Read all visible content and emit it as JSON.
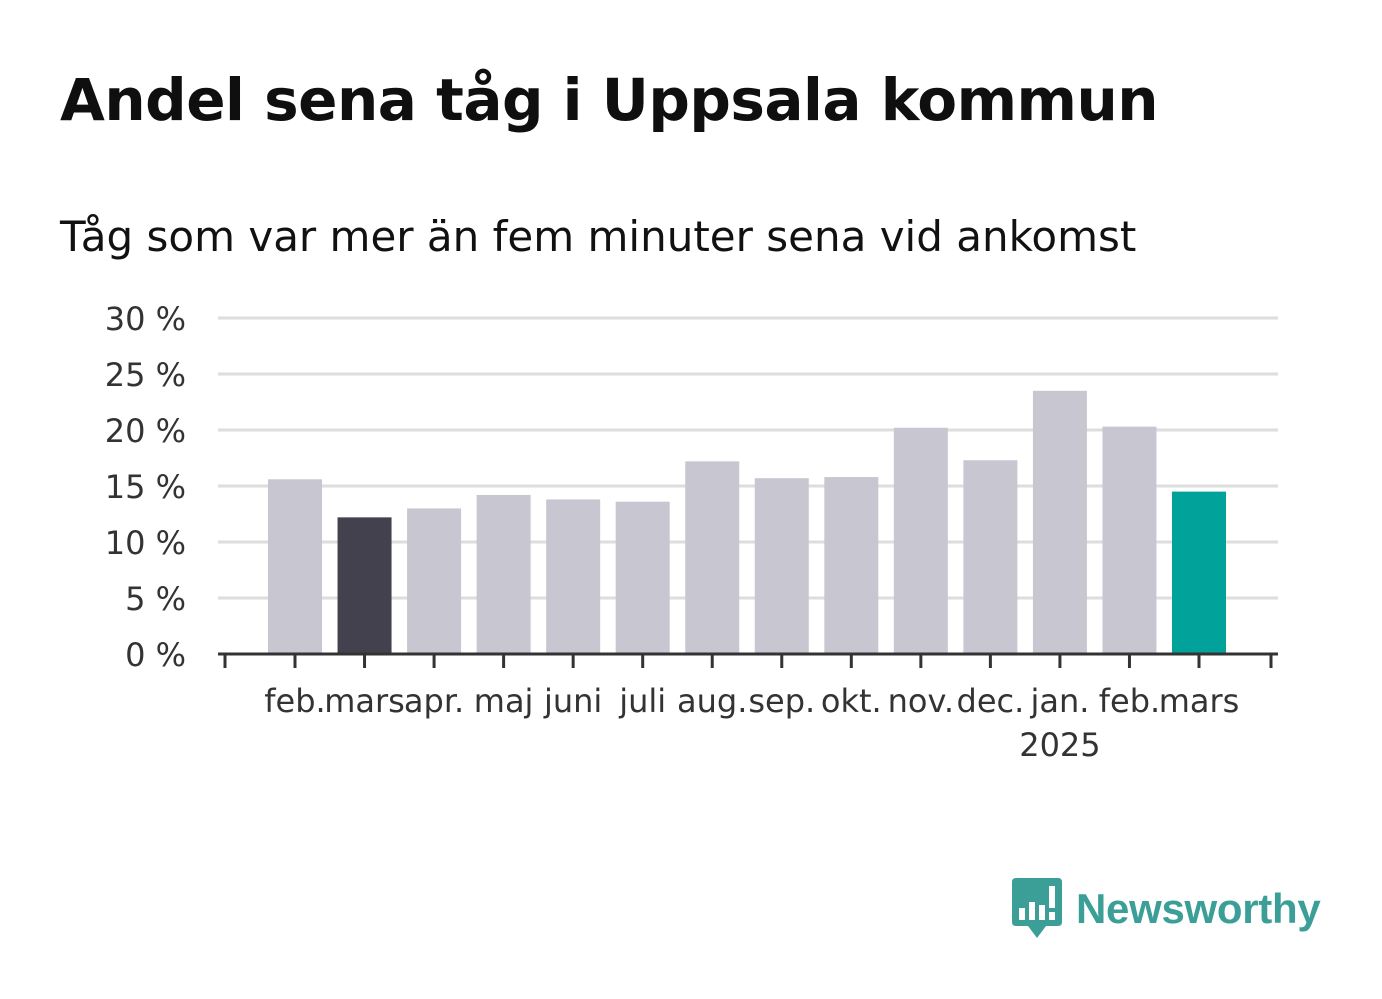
{
  "title": "Andel sena tåg i Uppsala kommun",
  "subtitle": "Tåg som var mer än fem minuter sena vid ankomst",
  "brand": {
    "name": "Newsworthy",
    "color": "#3b9f98",
    "icon": "newsworthy-speech-bar-icon"
  },
  "chart_data": {
    "type": "bar",
    "categories": [
      "feb.",
      "mars",
      "apr.",
      "maj",
      "juni",
      "juli",
      "aug.",
      "sep.",
      "okt.",
      "nov.",
      "dec.",
      "jan.",
      "feb.",
      "mars"
    ],
    "year_label": "2025",
    "year_label_under": "jan.",
    "values": [
      15.6,
      12.2,
      13.0,
      14.2,
      13.8,
      13.6,
      17.2,
      15.7,
      15.8,
      20.2,
      17.3,
      23.5,
      20.3,
      14.5
    ],
    "bar_colors": [
      "#c8c7d1",
      "#43414d",
      "#c8c7d1",
      "#c8c7d1",
      "#c8c7d1",
      "#c8c7d1",
      "#c8c7d1",
      "#c8c7d1",
      "#c8c7d1",
      "#c8c7d1",
      "#c8c7d1",
      "#c8c7d1",
      "#c8c7d1",
      "#00a29a"
    ],
    "y_ticks": [
      "0 %",
      "5 %",
      "10 %",
      "15 %",
      "20 %",
      "25 %",
      "30 %"
    ],
    "y_tick_values": [
      0,
      5,
      10,
      15,
      20,
      25,
      30
    ],
    "ylim": [
      0,
      30
    ],
    "grid": true,
    "gridline_color": "#dddddd",
    "axis_color": "#333333"
  }
}
